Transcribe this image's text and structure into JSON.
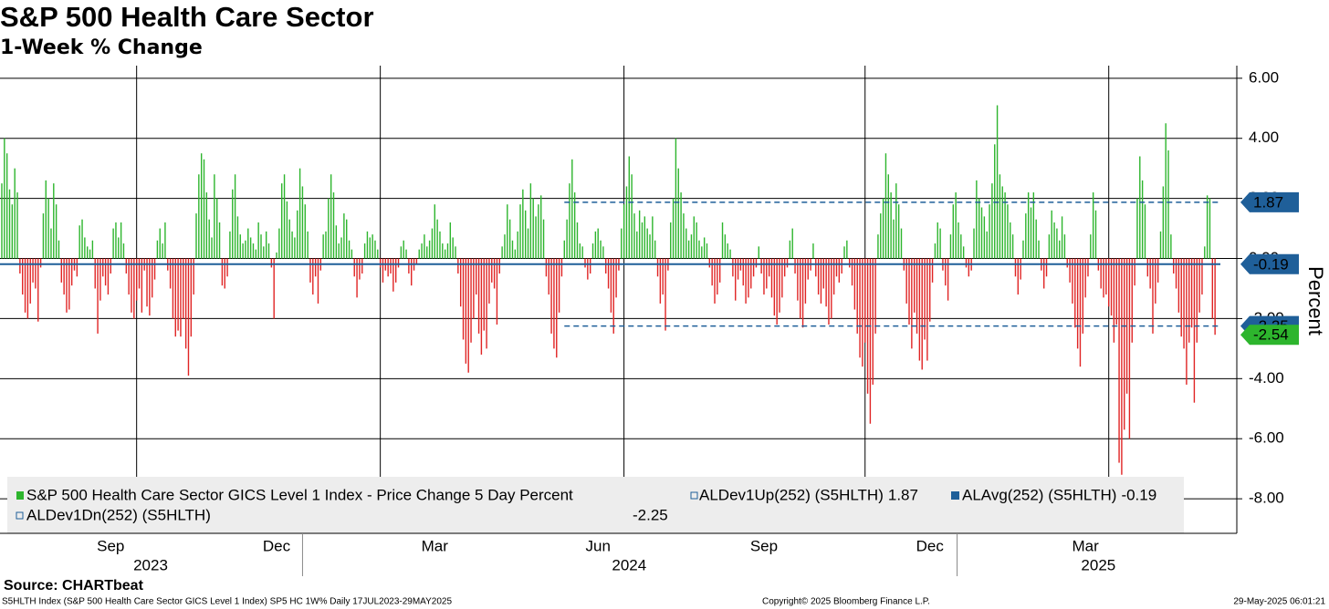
{
  "chart_data": {
    "type": "bar",
    "title": "S&P 500 Health Care Sector",
    "subtitle": "1-Week % Change",
    "y_label": "Percent",
    "xlim": [
      -0.7,
      476.4
    ],
    "ylim": [
      -9.15,
      6.42
    ],
    "yticks": [
      {
        "value": 6,
        "label": "6.00"
      },
      {
        "value": 4,
        "label": "4.00"
      },
      {
        "value": 2,
        "label": "2.00"
      },
      {
        "value": 0,
        "label": "0.00"
      },
      {
        "value": -2,
        "label": "-2.00"
      },
      {
        "value": -4,
        "label": "-4.00"
      },
      {
        "value": -6,
        "label": "-6.00"
      },
      {
        "value": -8,
        "label": "-8.00"
      }
    ],
    "xticks": [
      {
        "value": 42,
        "label": "Sep"
      },
      {
        "value": 106,
        "label": "Dec"
      },
      {
        "value": 167,
        "label": "Mar"
      },
      {
        "value": 230,
        "label": "Jun"
      },
      {
        "value": 294,
        "label": "Sep"
      },
      {
        "value": 358,
        "label": "Dec"
      },
      {
        "value": 418,
        "label": "Mar"
      }
    ],
    "year_labels": [
      {
        "value": 57.4,
        "label": "2023"
      },
      {
        "value": 242,
        "label": "2024"
      },
      {
        "value": 423,
        "label": "2025"
      }
    ],
    "year_separators": [
      116,
      368.5
    ],
    "xgrid": [
      52,
      146,
      240,
      333,
      427
    ],
    "grid": true,
    "series": [
      {
        "name": "S&P 500 Health Care Sector GICS Level 1 Index - Price Change 5 Day Percent",
        "color": "#2db52d",
        "negative_color": "#e02424",
        "values": [
          2.5,
          4.0,
          3.5,
          2.3,
          1.8,
          3.0,
          2.2,
          -0.5,
          -1.2,
          -1.8,
          -2.0,
          -1.5,
          -0.8,
          -1.0,
          -2.1,
          -0.3,
          1.5,
          2.6,
          2.0,
          1.0,
          2.5,
          1.8,
          0.6,
          -0.8,
          -1.2,
          -1.8,
          -1.7,
          -0.9,
          -0.4,
          -0.6,
          1.1,
          1.3,
          0.7,
          0.4,
          0.3,
          0.6,
          -1.0,
          -2.5,
          -1.4,
          -0.6,
          -0.9,
          -1.2,
          -0.5,
          1.0,
          1.2,
          0.7,
          1.2,
          0.5,
          -0.5,
          -1.2,
          -1.8,
          -2.0,
          -1.4,
          -1.0,
          -1.8,
          -0.4,
          -1.6,
          -1.9,
          -1.3,
          -0.7,
          0.6,
          1.0,
          0.5,
          1.2,
          -0.4,
          -1.0,
          -2.0,
          -2.6,
          -2.4,
          -2.6,
          -2.0,
          -3.0,
          -3.9,
          -2.6,
          -1.2,
          1.5,
          2.8,
          3.5,
          3.3,
          2.2,
          1.3,
          0.7,
          2.8,
          2.0,
          1.2,
          -0.9,
          -1.0,
          -0.6,
          0.9,
          2.3,
          2.8,
          1.4,
          0.8,
          0.5,
          0.6,
          1.0,
          0.7,
          0.5,
          0.3,
          1.2,
          0.8,
          0.4,
          0.9,
          0.5,
          -0.3,
          -2.0,
          0.2,
          1.0,
          2.5,
          2.8,
          1.9,
          1.3,
          0.9,
          0.7,
          1.6,
          3.0,
          2.4,
          1.8,
          0.9,
          -0.8,
          -1.2,
          -0.6,
          -1.5,
          -0.4,
          0.8,
          0.9,
          2.0,
          2.8,
          2.2,
          1.1,
          0.5,
          0.7,
          1.5,
          1.3,
          0.6,
          0.3,
          -0.6,
          -1.3,
          -0.7,
          -0.5,
          0.5,
          0.9,
          0.7,
          0.8,
          0.6,
          0.3,
          -0.3,
          -0.8,
          -0.4,
          -0.6,
          -0.5,
          -1.1,
          -0.8,
          -0.3,
          0.4,
          0.6,
          0.3,
          -0.5,
          -0.9,
          -0.4,
          -0.2,
          0.3,
          0.5,
          0.8,
          0.4,
          0.6,
          1.0,
          1.8,
          1.3,
          0.9,
          0.5,
          0.3,
          0.5,
          1.2,
          0.7,
          0.4,
          -0.5,
          -1.6,
          -2.7,
          -3.5,
          -3.8,
          -2.8,
          -2.0,
          -1.2,
          -2.5,
          -3.2,
          -2.4,
          -3.0,
          -1.5,
          -0.8,
          -1.0,
          -2.2,
          -0.5,
          0.4,
          0.8,
          1.8,
          1.3,
          0.6,
          0.3,
          0.9,
          1.8,
          2.3,
          1.6,
          1.0,
          2.5,
          2.0,
          1.4,
          1.8,
          2.1,
          1.3,
          -0.6,
          -1.2,
          -2.5,
          -3.0,
          -3.3,
          -1.8,
          -0.6,
          0.6,
          1.3,
          2.5,
          3.3,
          2.2,
          1.2,
          0.5,
          0.4,
          -0.3,
          -0.7,
          -0.5,
          0.5,
          0.9,
          1.0,
          0.6,
          0.4,
          -0.5,
          -1.0,
          -1.8,
          -2.5,
          -1.3,
          -0.4,
          1.0,
          1.8,
          2.4,
          3.4,
          2.8,
          1.5,
          0.9,
          1.6,
          1.2,
          1.4,
          1.0,
          0.8,
          1.4,
          0.6,
          -0.6,
          -1.5,
          -1.2,
          -2.4,
          -0.4,
          1.2,
          2.0,
          4.0,
          3.0,
          2.2,
          1.5,
          1.0,
          0.6,
          0.8,
          1.4,
          1.2,
          0.6,
          0.4,
          0.7,
          0.5,
          -0.3,
          -0.9,
          -1.5,
          -1.2,
          -0.8,
          1.2,
          0.8,
          0.5,
          0.3,
          -0.6,
          -1.4,
          -0.7,
          -0.4,
          -0.9,
          -1.5,
          -1.3,
          -1.0,
          -0.6,
          -0.3,
          0.4,
          -0.5,
          -1.2,
          -1.0,
          -0.6,
          -1.3,
          -1.9,
          -2.2,
          -1.8,
          -1.3,
          -0.6,
          -0.3,
          0.6,
          1.0,
          -0.5,
          -1.4,
          -2.0,
          -2.3,
          -1.5,
          -0.7,
          -0.4,
          0.5,
          -0.6,
          -1.2,
          -1.5,
          -1.0,
          -1.6,
          -2.2,
          -2.0,
          -1.2,
          -0.6,
          -0.8,
          -0.5,
          0.4,
          0.6,
          -0.3,
          -0.9,
          -1.7,
          -2.5,
          -3.3,
          -3.6,
          -2.8,
          -4.5,
          -5.5,
          -4.2,
          -2.5,
          0.8,
          1.5,
          2.0,
          3.5,
          2.8,
          2.2,
          1.3,
          2.5,
          1.8,
          1.0,
          -0.4,
          -1.5,
          -2.2,
          -3.0,
          -1.8,
          -2.5,
          -3.4,
          -3.7,
          -2.7,
          -3.4,
          -2.1,
          -0.8,
          0.5,
          1.2,
          1.0,
          -0.4,
          -0.9,
          -1.4,
          0.8,
          1.8,
          2.2,
          1.2,
          0.8,
          0.4,
          -0.3,
          -0.6,
          -0.4,
          1.0,
          2.6,
          2.0,
          1.7,
          1.4,
          0.9,
          1.8,
          2.5,
          3.8,
          5.1,
          2.8,
          2.4,
          2.2,
          1.8,
          1.2,
          0.8,
          -0.6,
          -1.2,
          -0.7,
          0.6,
          1.5,
          2.2,
          1.7,
          2.2,
          1.3,
          0.6,
          -0.4,
          -1.0,
          -0.6,
          0.8,
          1.6,
          1.2,
          1.0,
          0.6,
          1.4,
          0.8,
          -0.3,
          -0.8,
          -1.5,
          -2.3,
          -3.0,
          -3.6,
          -2.5,
          -1.3,
          -0.6,
          0.8,
          2.2,
          1.6,
          -0.4,
          -1.0,
          -1.3,
          -1.2,
          -1.6,
          -1.9,
          -2.8,
          -2.2,
          -6.8,
          -7.2,
          -5.7,
          -4.5,
          -6.0,
          -2.8,
          -0.9,
          2.0,
          3.4,
          2.6,
          1.8,
          -0.6,
          -1.0,
          -2.5,
          -1.5,
          -0.8,
          0.9,
          2.4,
          4.5,
          3.6,
          0.8,
          -0.5,
          -1.0,
          -1.8,
          -2.6,
          -3.0,
          -4.2,
          -2.8,
          -2.3,
          -4.8,
          -2.8,
          -1.8,
          -1.2,
          0.4,
          2.1,
          2.0,
          -2.0,
          -2.54
        ]
      }
    ],
    "reference_lines": [
      {
        "name": "ALDev1Up(252) (S5HLTH)",
        "value": 1.87,
        "color": "#1f5f99",
        "style": "dashed",
        "start": 217
      },
      {
        "name": "ALAvg(252) (S5HLTH)",
        "value": -0.19,
        "color": "#1f5f99",
        "style": "solid",
        "start": -0.7
      },
      {
        "name": "ALDev1Dn(252) (S5HLTH)",
        "value": -2.25,
        "color": "#1f5f99",
        "style": "dashed",
        "start": 217
      }
    ],
    "source": "Source: CHARTbeat",
    "footer_left": "S5HLTH Index (S&P 500 Health Care Sector GICS Level 1 Index) SP5 HC 1W%  Daily 17JUL2023-29MAY2025",
    "copyright": "Copyright© 2025 Bloomberg Finance L.P.",
    "timestamp": "29-May-2025 06:01:21"
  }
}
